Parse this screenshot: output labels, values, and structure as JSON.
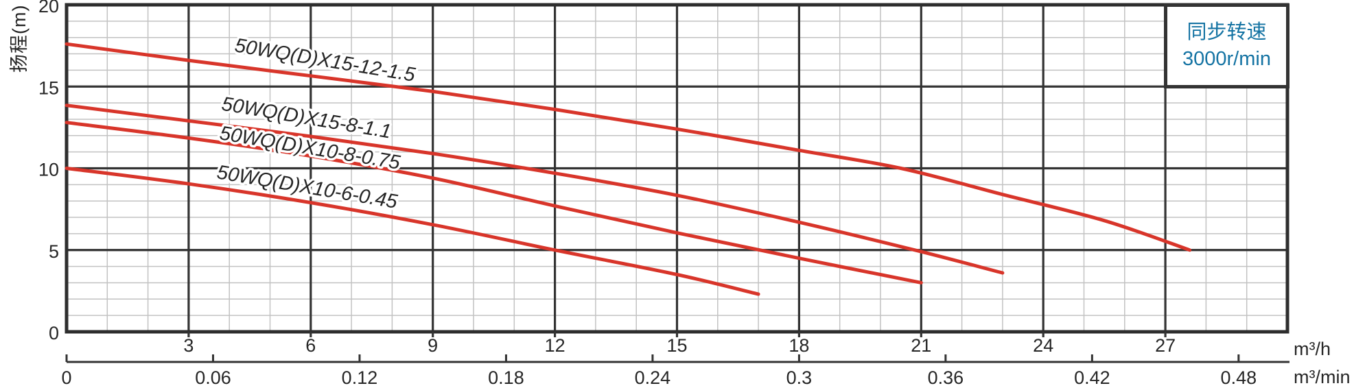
{
  "figure": {
    "y_axis_title": "扬程(m)",
    "x_unit_primary": "m³/h",
    "x_unit_secondary": "m³/min",
    "legend": {
      "line1": "同步转速",
      "line2": "3000r/min"
    }
  },
  "colors": {
    "curve": "#d8352a",
    "grid_major": "#333333",
    "grid_minor": "#c2c2c2",
    "border": "#2e2e2e",
    "text": "#262626",
    "legend_text": "#1473a3",
    "background": "#ffffff"
  },
  "chart_data": {
    "type": "line",
    "title": "",
    "x_axis": {
      "label": "m³/h",
      "min": 0,
      "max": 30,
      "major_step": 3,
      "minor_step": 1,
      "tick_labels": [
        "3",
        "6",
        "9",
        "12",
        "15",
        "18",
        "21",
        "24",
        "27"
      ]
    },
    "x_axis_secondary": {
      "label": "m³/min",
      "unit_factor_to_primary": 60,
      "tick_labels": [
        "0",
        "0.06",
        "0.12",
        "0.18",
        "0.24",
        "0.3",
        "0.36",
        "0.42",
        "0.48"
      ]
    },
    "y_axis": {
      "label": "扬程(m)",
      "min": 0,
      "max": 20,
      "major_step": 5,
      "minor_step": 1,
      "tick_labels": [
        "0",
        "5",
        "10",
        "15",
        "20"
      ]
    },
    "legend": {
      "text": [
        "同步转速",
        "3000r/min"
      ],
      "position": "top-right"
    },
    "grid": "on",
    "series": [
      {
        "name": "50WQ(D)X15-12-1.5",
        "points": [
          [
            0,
            17.6
          ],
          [
            3,
            16.6
          ],
          [
            6,
            15.65
          ],
          [
            9,
            14.7
          ],
          [
            12,
            13.6
          ],
          [
            15,
            12.4
          ],
          [
            18,
            11.1
          ],
          [
            20.5,
            10.0
          ],
          [
            23,
            8.4
          ],
          [
            25.5,
            6.8
          ],
          [
            27.6,
            5.0
          ]
        ],
        "label": {
          "x": 472,
          "y": 97,
          "angle": 9.5
        }
      },
      {
        "name": "50WQ(D)X15-8-1.1",
        "points": [
          [
            0,
            13.85
          ],
          [
            3,
            12.9
          ],
          [
            6,
            11.95
          ],
          [
            9,
            10.9
          ],
          [
            12,
            9.7
          ],
          [
            15,
            8.35
          ],
          [
            18,
            6.7
          ],
          [
            21,
            4.9
          ],
          [
            23,
            3.6
          ]
        ],
        "label": {
          "x": 445,
          "y": 181,
          "angle": 9.5
        }
      },
      {
        "name": "50WQ(D)X10-8-0.75",
        "points": [
          [
            0,
            12.8
          ],
          [
            3,
            11.85
          ],
          [
            6,
            10.75
          ],
          [
            9,
            9.4
          ],
          [
            12,
            7.7
          ],
          [
            15,
            6.05
          ],
          [
            18,
            4.5
          ],
          [
            21,
            3.0
          ]
        ],
        "label": {
          "x": 450,
          "y": 225,
          "angle": 9.5
        }
      },
      {
        "name": "50WQ(D)X10-6-0.45",
        "points": [
          [
            0,
            10.0
          ],
          [
            3,
            9.05
          ],
          [
            6,
            7.9
          ],
          [
            9,
            6.55
          ],
          [
            12,
            5.0
          ],
          [
            15,
            3.5
          ],
          [
            17,
            2.3
          ]
        ],
        "label": {
          "x": 446,
          "y": 282,
          "angle": 9.5
        }
      }
    ]
  }
}
